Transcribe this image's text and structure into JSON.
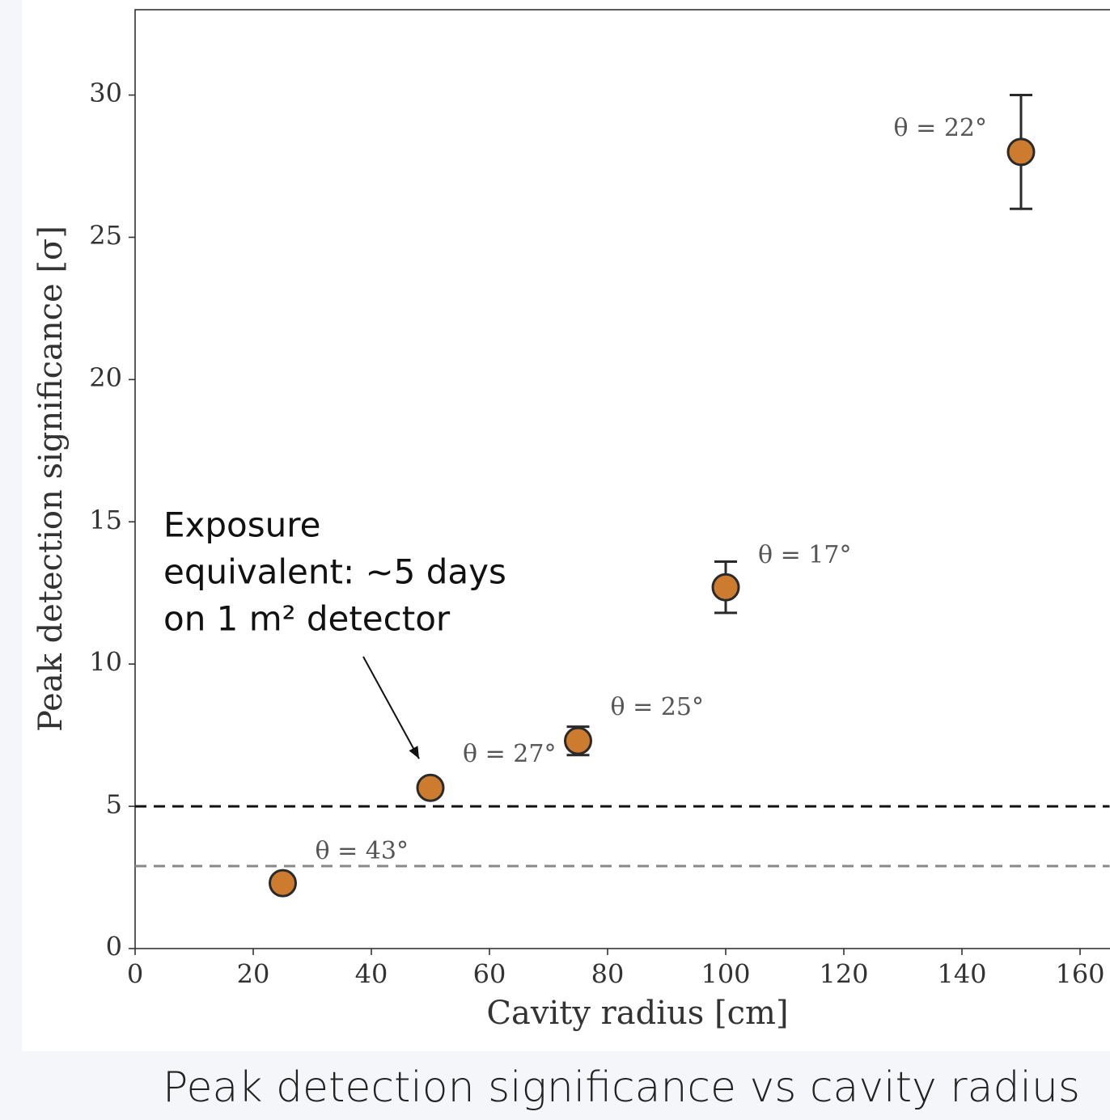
{
  "chart_data": {
    "type": "errorbar",
    "caption": "Peak detection significance vs cavity radius",
    "xlabel": "Cavity radius [cm]",
    "ylabel": "Peak detection significance [σ]",
    "xlim": [
      0,
      165
    ],
    "ylim": [
      0,
      33
    ],
    "xticks": [
      0,
      20,
      40,
      60,
      80,
      100,
      120,
      140,
      160
    ],
    "yticks": [
      0,
      5,
      10,
      15,
      20,
      25,
      30
    ],
    "grid": false,
    "series": [
      {
        "color": "#cd7b2f",
        "x": [
          25,
          50,
          75,
          100,
          150
        ],
        "values": [
          2.3,
          5.65,
          7.3,
          12.7,
          28
        ],
        "errors": [
          0,
          0.15,
          0.5,
          0.9,
          2
        ],
        "point_labels": [
          "θ = 43°",
          "θ = 27°",
          "θ = 25°",
          "θ = 17°",
          "θ = 22°"
        ]
      }
    ],
    "hlines": [
      {
        "value": 5,
        "color": "#111111"
      },
      {
        "value": 2.9,
        "color": "#888888"
      }
    ],
    "annotation": {
      "lines": [
        "Exposure",
        "equivalent: ~5 days",
        "on 1 m² detector"
      ],
      "points_to": 1
    }
  }
}
